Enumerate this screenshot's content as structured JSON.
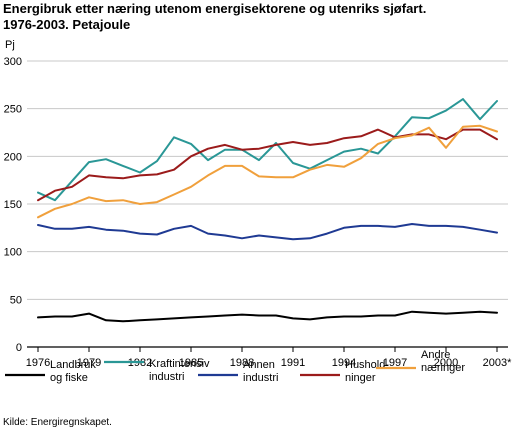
{
  "title_line1": "Energibruk etter næring utenom energisektorene og utenriks sjøfart.",
  "title_line2": "1976-2003. Petajoule",
  "source": "Kilde: Energiregnskapet.",
  "chart_data": {
    "type": "line",
    "ylabel": "Pj",
    "ylim": [
      0,
      300
    ],
    "yticks": [
      0,
      50,
      100,
      150,
      200,
      250,
      300
    ],
    "xlim": [
      1976,
      2003
    ],
    "x": [
      1976,
      1977,
      1978,
      1979,
      1980,
      1981,
      1982,
      1983,
      1984,
      1985,
      1986,
      1987,
      1988,
      1989,
      1990,
      1991,
      1992,
      1993,
      1994,
      1995,
      1996,
      1997,
      1998,
      1999,
      2000,
      2001,
      2002,
      2003
    ],
    "xticks": [
      {
        "value": 1976,
        "label": "1976"
      },
      {
        "value": 1979,
        "label": "1979"
      },
      {
        "value": 1982,
        "label": "1982"
      },
      {
        "value": 1985,
        "label": "1985"
      },
      {
        "value": 1988,
        "label": "1988"
      },
      {
        "value": 1991,
        "label": "1991"
      },
      {
        "value": 1994,
        "label": "1994"
      },
      {
        "value": 1997,
        "label": "1997"
      },
      {
        "value": 2000,
        "label": "2000"
      },
      {
        "value": 2003,
        "label": "2003*"
      }
    ],
    "grid": true,
    "legend_position": "bottom",
    "series": [
      {
        "name_lines": [
          "Landbruk",
          "og fiske"
        ],
        "color": "#000000",
        "values": [
          31,
          32,
          32,
          35,
          28,
          27,
          28,
          29,
          30,
          31,
          32,
          33,
          34,
          33,
          33,
          30,
          29,
          31,
          32,
          32,
          33,
          33,
          37,
          36,
          35,
          36,
          37,
          36
        ]
      },
      {
        "name_lines": [
          "Kraftintensiv",
          "industri"
        ],
        "color": "#2a9796",
        "values": [
          162,
          154,
          174,
          194,
          197,
          190,
          183,
          195,
          220,
          213,
          196,
          207,
          207,
          196,
          214,
          193,
          187,
          196,
          205,
          208,
          203,
          221,
          241,
          240,
          248,
          260,
          239,
          258
        ]
      },
      {
        "name_lines": [
          "Annen",
          "industri"
        ],
        "color": "#1f3a93",
        "values": [
          128,
          124,
          124,
          126,
          123,
          122,
          119,
          118,
          124,
          127,
          119,
          117,
          114,
          117,
          115,
          113,
          114,
          119,
          125,
          127,
          127,
          126,
          129,
          127,
          127,
          126,
          123,
          120
        ]
      },
      {
        "name_lines": [
          "Hushold-",
          "ninger"
        ],
        "color": "#9b1b1b",
        "values": [
          154,
          164,
          168,
          180,
          178,
          177,
          180,
          181,
          186,
          200,
          208,
          212,
          207,
          208,
          212,
          215,
          212,
          214,
          219,
          221,
          228,
          220,
          223,
          223,
          218,
          228,
          228,
          218
        ]
      },
      {
        "name_lines": [
          "Andre",
          "næringer"
        ],
        "color": "#f0a03c",
        "values": [
          136,
          145,
          150,
          157,
          153,
          154,
          150,
          152,
          160,
          168,
          180,
          190,
          190,
          179,
          178,
          178,
          186,
          191,
          189,
          198,
          213,
          219,
          222,
          230,
          209,
          231,
          232,
          226
        ]
      }
    ]
  }
}
